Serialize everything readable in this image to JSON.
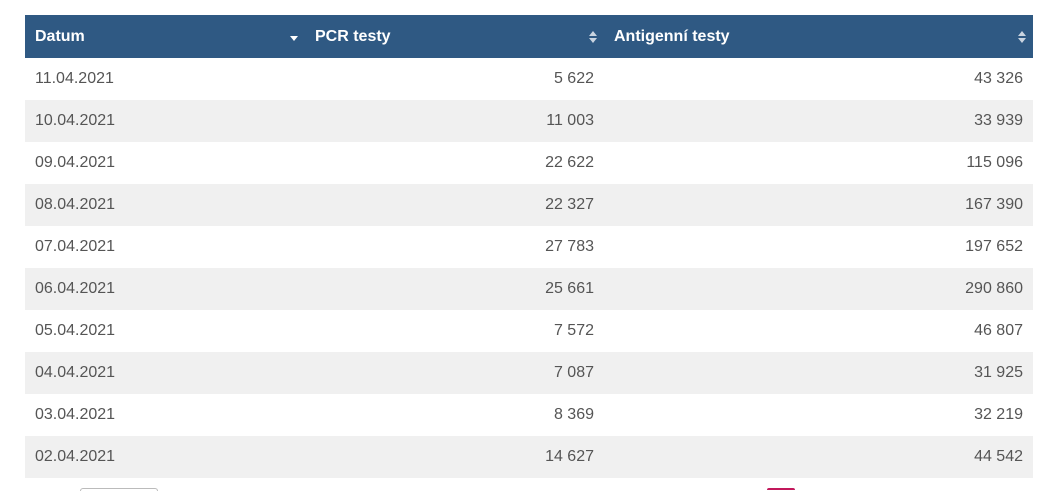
{
  "table": {
    "columns": [
      {
        "label": "Datum",
        "sort": "desc-active"
      },
      {
        "label": "PCR testy",
        "sort": "both"
      },
      {
        "label": "Antigenní testy",
        "sort": "both"
      }
    ],
    "rows": [
      [
        "11.04.2021",
        "5 622",
        "43 326"
      ],
      [
        "10.04.2021",
        "11 003",
        "33 939"
      ],
      [
        "09.04.2021",
        "22 622",
        "115 096"
      ],
      [
        "08.04.2021",
        "22 327",
        "167 390"
      ],
      [
        "07.04.2021",
        "27 783",
        "197 652"
      ],
      [
        "06.04.2021",
        "25 661",
        "290 860"
      ],
      [
        "05.04.2021",
        "7 572",
        "46 807"
      ],
      [
        "04.04.2021",
        "7 087",
        "31 925"
      ],
      [
        "03.04.2021",
        "8 369",
        "32 219"
      ],
      [
        "02.04.2021",
        "14 627",
        "44 542"
      ]
    ]
  },
  "colors": {
    "header_bg": "#2f5983",
    "row_alt_bg": "#f0f0f0",
    "accent": "#c2185b"
  }
}
